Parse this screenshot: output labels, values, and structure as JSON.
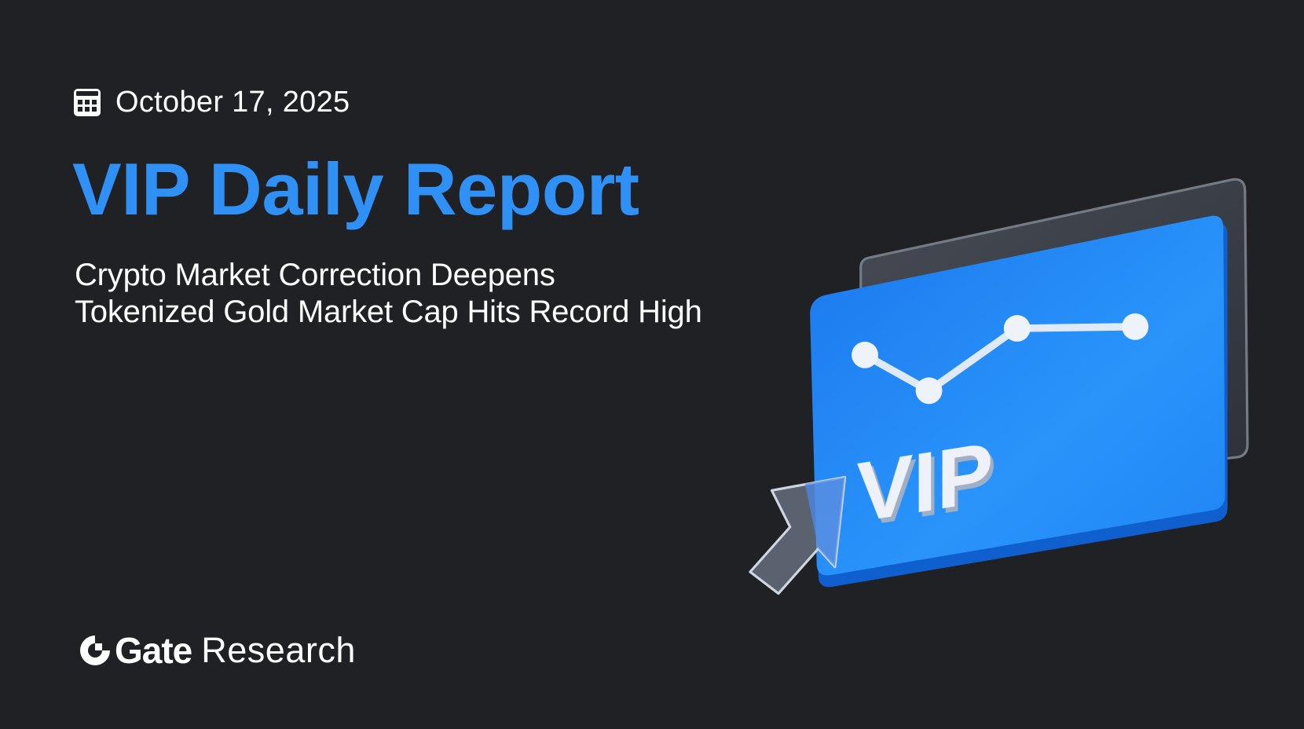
{
  "header": {
    "date": "October 17, 2025",
    "date_icon": "calendar-icon"
  },
  "title": "VIP Daily Report",
  "subtitles": [
    "Crypto Market Correction Deepens",
    "Tokenized Gold Market Cap Hits Record High"
  ],
  "logo": {
    "brand": "Gate",
    "suffix": "Research"
  },
  "illustration": {
    "card_text": "VIP",
    "card_color": "#1f7ff0",
    "accent_color": "#2f90f6",
    "background_color": "#202125"
  }
}
